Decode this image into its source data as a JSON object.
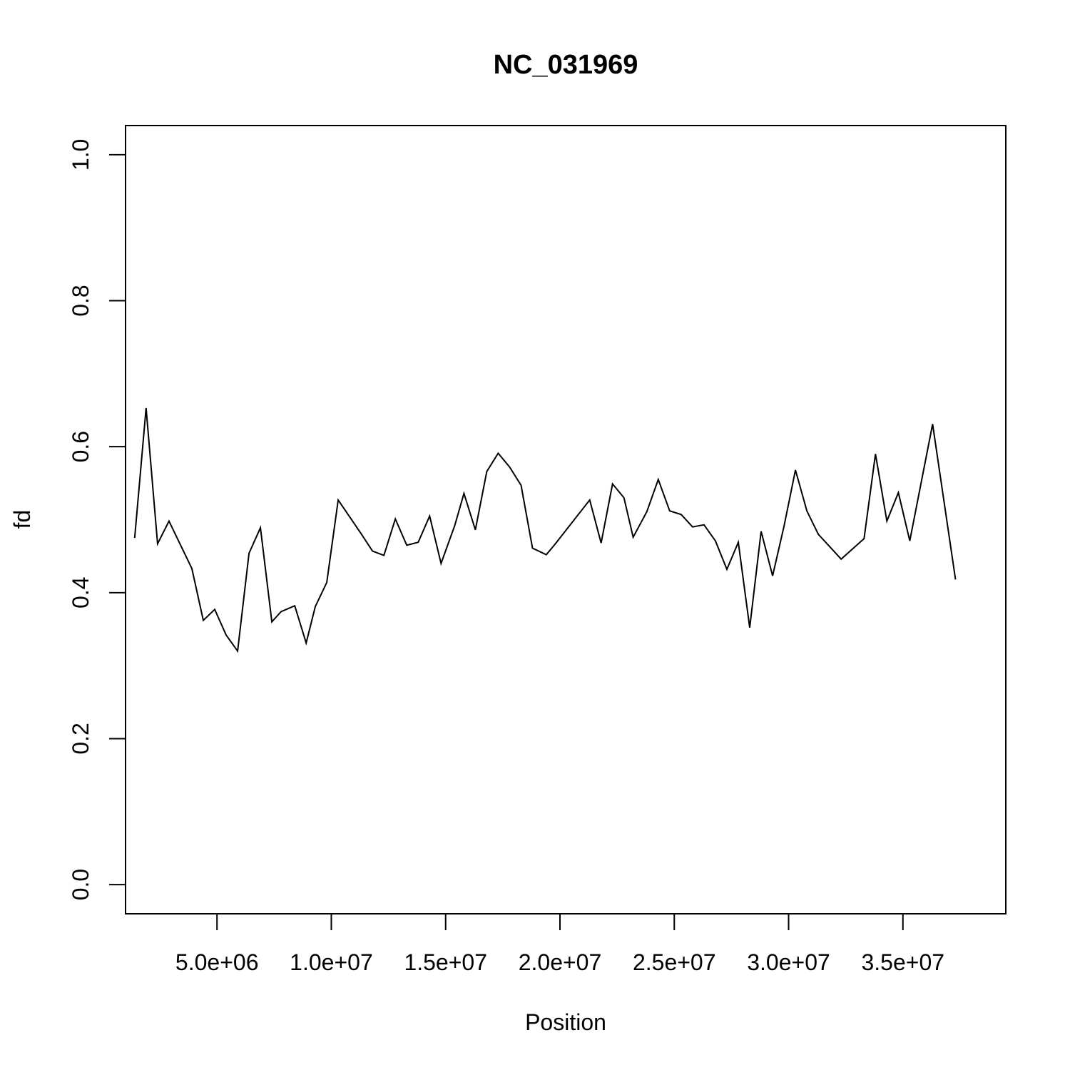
{
  "chart_data": {
    "type": "line",
    "title": "NC_031969",
    "xlabel": "Position",
    "ylabel": "fd",
    "xlim": [
      1000000,
      39500000
    ],
    "ylim": [
      -0.04,
      1.04
    ],
    "x_ticks": [
      5000000,
      10000000,
      15000000,
      20000000,
      25000000,
      30000000,
      35000000
    ],
    "x_tick_labels": [
      "5.0e+06",
      "1.0e+07",
      "1.5e+07",
      "2.0e+07",
      "2.5e+07",
      "3.0e+07",
      "3.5e+07"
    ],
    "y_ticks": [
      0.0,
      0.2,
      0.4,
      0.6,
      0.8,
      1.0
    ],
    "y_tick_labels": [
      "0.0",
      "0.2",
      "0.4",
      "0.6",
      "0.8",
      "1.0"
    ],
    "grid": false,
    "legend": "none",
    "line_color": "#000000",
    "series": [
      {
        "x": [
          1400000,
          1900000,
          2400000,
          2900000,
          3900000,
          4400000,
          4900000,
          5400000,
          5900000,
          6400000,
          6900000,
          7400000,
          7800000,
          8400000,
          8900000,
          9300000,
          9800000,
          10300000,
          11300000,
          11800000,
          12300000,
          12800000,
          13300000,
          13800000,
          14300000,
          14800000,
          15400000,
          15800000,
          16300000,
          16800000,
          17300000,
          17800000,
          18300000,
          18800000,
          19400000,
          19800000,
          21300000,
          21800000,
          22300000,
          22800000,
          23200000,
          23800000,
          24300000,
          24800000,
          25300000,
          25800000,
          26300000,
          26800000,
          27300000,
          27800000,
          28300000,
          28800000,
          29300000,
          29800000,
          30300000,
          30800000,
          31300000,
          32300000,
          33300000,
          33800000,
          34300000,
          34800000,
          35300000,
          36300000,
          37300000
        ],
        "y": [
          0.475,
          0.653,
          0.467,
          0.498,
          0.433,
          0.362,
          0.377,
          0.342,
          0.32,
          0.454,
          0.489,
          0.36,
          0.374,
          0.382,
          0.331,
          0.381,
          0.414,
          0.527,
          0.481,
          0.457,
          0.451,
          0.501,
          0.465,
          0.469,
          0.505,
          0.44,
          0.492,
          0.536,
          0.486,
          0.566,
          0.591,
          0.572,
          0.547,
          0.461,
          0.452,
          0.467,
          0.527,
          0.468,
          0.549,
          0.53,
          0.476,
          0.511,
          0.555,
          0.512,
          0.507,
          0.49,
          0.493,
          0.471,
          0.432,
          0.469,
          0.352,
          0.484,
          0.423,
          0.491,
          0.568,
          0.512,
          0.48,
          0.446,
          0.474,
          0.59,
          0.498,
          0.537,
          0.471,
          0.631,
          0.418
        ]
      }
    ]
  }
}
